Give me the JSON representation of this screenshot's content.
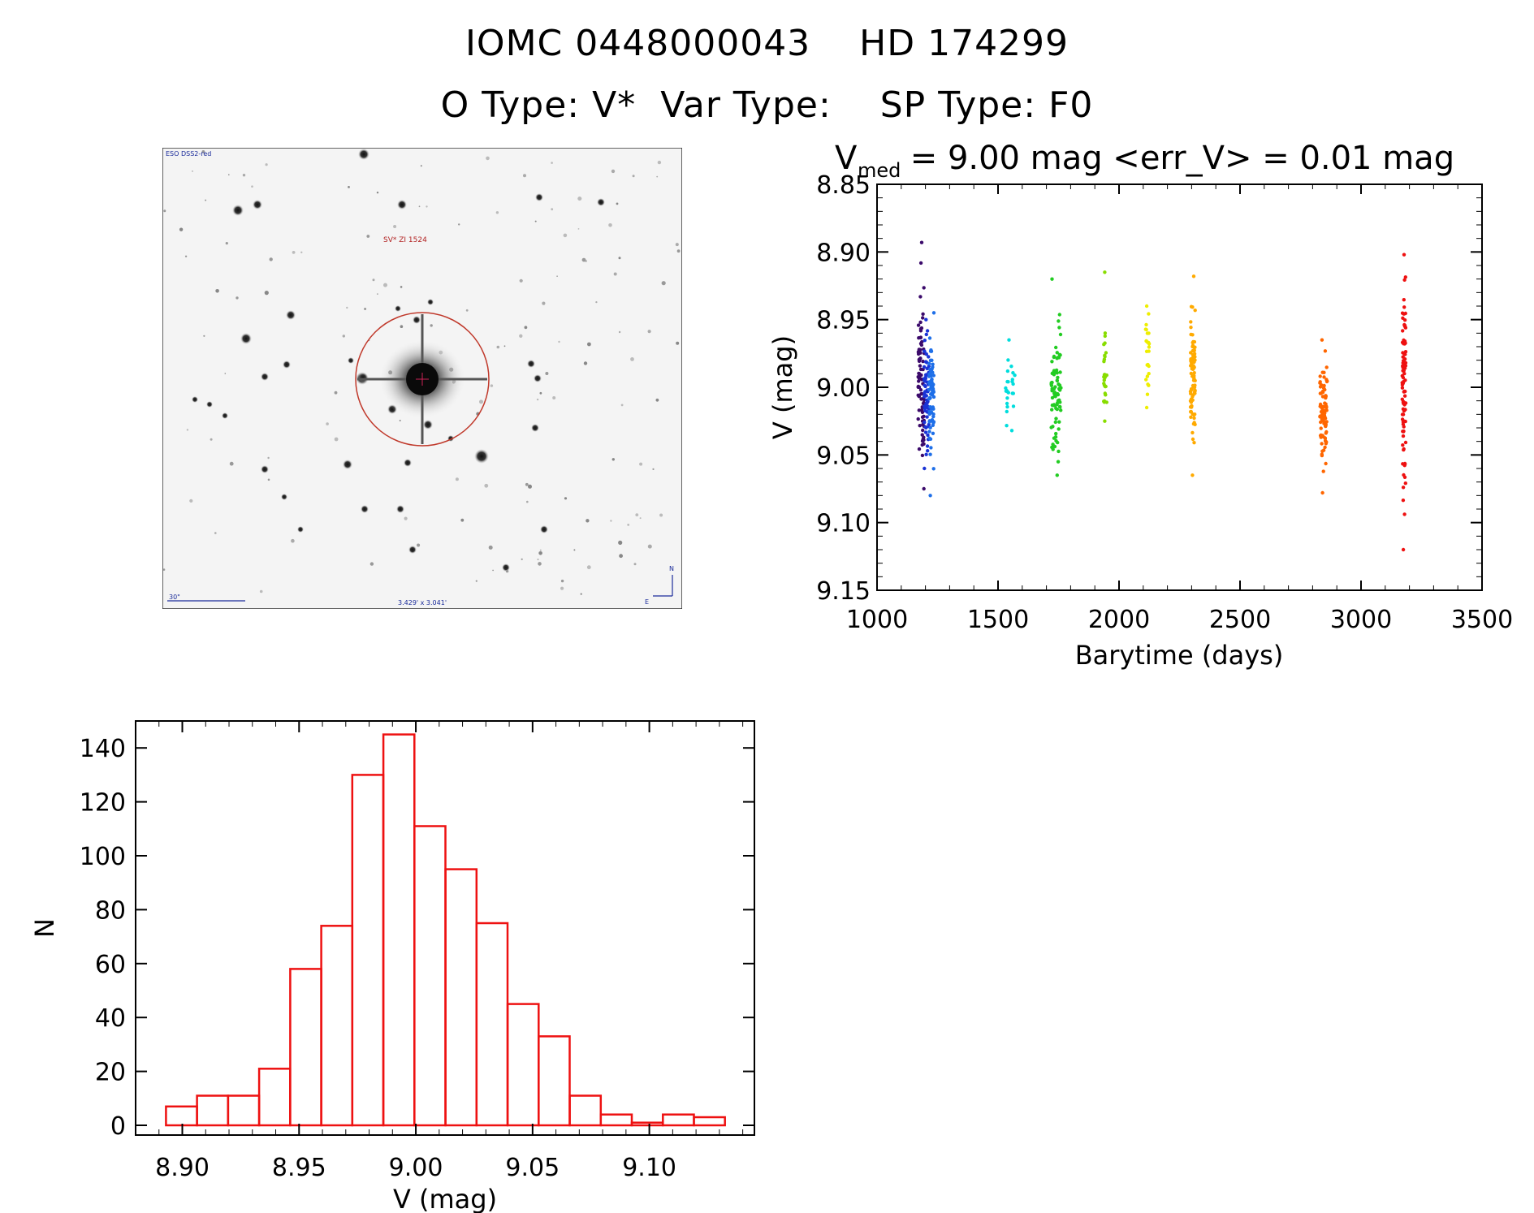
{
  "header": {
    "line1": "IOMC 0448000043    HD 174299",
    "line2": "O Type: V*  Var Type:    SP Type: F0"
  },
  "image_panel": {
    "survey_label": "ESO DSS2-red",
    "object_label": "SV* ZI 1524",
    "scale_label": "30\"",
    "fov_label": "3.429' x 3.041'",
    "north_label": "N",
    "east_label": "E"
  },
  "chart_data": [
    {
      "type": "scatter",
      "title_parts": {
        "v": "V",
        "sub": "med",
        "rest": " = 9.00 mag <err_V> = 0.01 mag"
      },
      "xlabel": "Barytime (days)",
      "ylabel": "V (mag)",
      "xlim": [
        1000,
        3500
      ],
      "ylim": [
        8.85,
        9.15
      ],
      "y_inverted": true,
      "xticks": [
        "1000",
        "1500",
        "2000",
        "2500",
        "3000",
        "3500"
      ],
      "yticks": [
        "8.85",
        "8.90",
        "8.95",
        "9.00",
        "9.05",
        "9.10",
        "9.15"
      ],
      "series": [
        {
          "color": "#3b0a6b",
          "x_range": [
            1170,
            1195
          ],
          "y_range": [
            8.893,
            9.075
          ],
          "center": 9.0,
          "n": 80
        },
        {
          "color": "#1a33d6",
          "x_range": [
            1195,
            1215
          ],
          "y_range": [
            8.95,
            9.06
          ],
          "center": 9.0,
          "n": 60
        },
        {
          "color": "#1e6fe8",
          "x_range": [
            1215,
            1235
          ],
          "y_range": [
            8.945,
            9.08
          ],
          "center": 9.0,
          "n": 80
        },
        {
          "color": "#00dddd",
          "x_range": [
            1530,
            1570
          ],
          "y_range": [
            8.965,
            9.032
          ],
          "center": 9.005,
          "n": 25
        },
        {
          "color": "#22cc22",
          "x_range": [
            1720,
            1760
          ],
          "y_range": [
            8.92,
            9.065
          ],
          "center": 9.0,
          "n": 80
        },
        {
          "color": "#88dd00",
          "x_range": [
            1935,
            1950
          ],
          "y_range": [
            8.915,
            9.025
          ],
          "center": 8.99,
          "n": 30
        },
        {
          "color": "#eeee00",
          "x_range": [
            2110,
            2125
          ],
          "y_range": [
            8.94,
            9.015
          ],
          "center": 8.98,
          "n": 25
        },
        {
          "color": "#ffaa00",
          "x_range": [
            2295,
            2315
          ],
          "y_range": [
            8.918,
            9.065
          ],
          "center": 8.99,
          "n": 90
        },
        {
          "color": "#ff6600",
          "x_range": [
            2830,
            2860
          ],
          "y_range": [
            8.965,
            9.078
          ],
          "center": 9.02,
          "n": 90
        },
        {
          "color": "#ee1111",
          "x_range": [
            3170,
            3185
          ],
          "y_range": [
            8.902,
            9.12
          ],
          "center": 9.0,
          "n": 90
        }
      ]
    },
    {
      "type": "bar",
      "subtype": "histogram",
      "xlabel": "V (mag)",
      "ylabel": "N",
      "xlim": [
        8.88,
        9.145
      ],
      "ylim": [
        0,
        150
      ],
      "xticks": [
        "8.90",
        "8.95",
        "9.00",
        "9.05",
        "9.10"
      ],
      "yticks": [
        "0",
        "20",
        "40",
        "60",
        "80",
        "100",
        "120",
        "140"
      ],
      "bar_color": "#ee1111",
      "bin_width": 0.0133,
      "bin_edges_start": 8.893,
      "values": [
        7,
        11,
        11,
        21,
        58,
        74,
        130,
        145,
        111,
        95,
        75,
        45,
        33,
        11,
        4,
        1,
        4,
        3
      ]
    }
  ]
}
